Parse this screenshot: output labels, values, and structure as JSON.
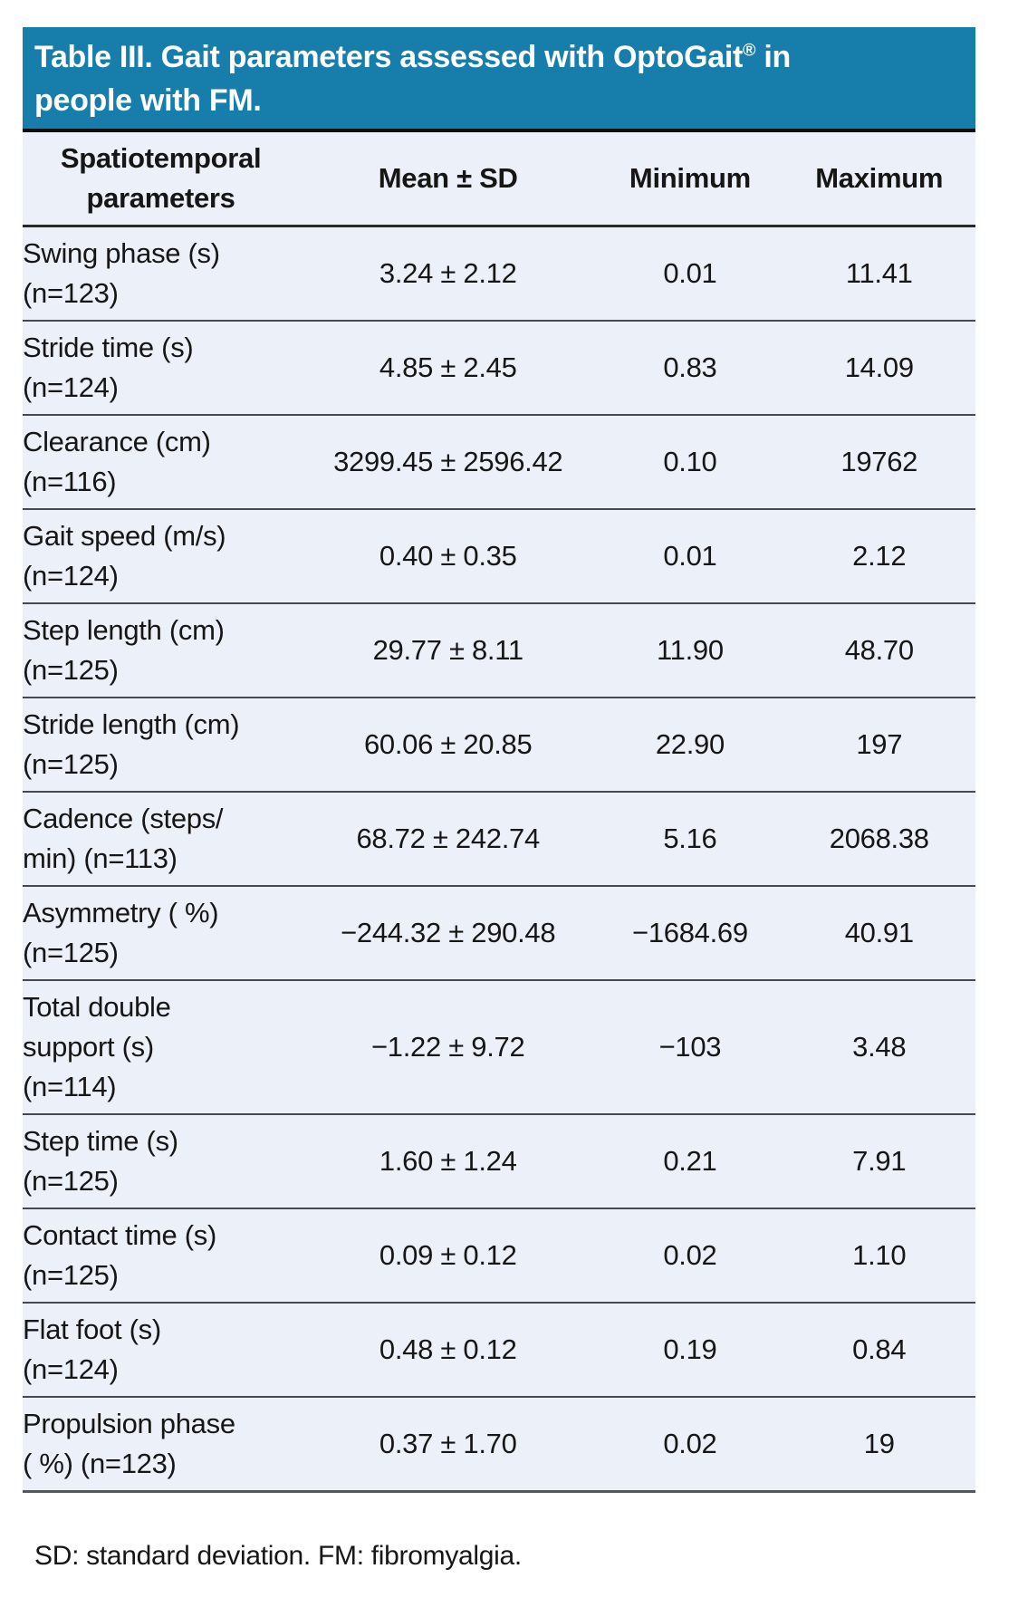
{
  "title": {
    "text_before_sup": "Table III. Gait parameters assessed with OptoGait",
    "sup": "®",
    "text_after_sup": " in\npeople with FM."
  },
  "table": {
    "columns": [
      "Spatiotemporal\nparameters",
      "Mean ± SD",
      "Minimum",
      "Maximum"
    ],
    "rows": [
      {
        "parameter": "Swing phase (s)\n(n=123)",
        "mean_sd": "3.24 ± 2.12",
        "minimum": "0.01",
        "maximum": "11.41"
      },
      {
        "parameter": "Stride time (s)\n(n=124)",
        "mean_sd": "4.85 ± 2.45",
        "minimum": "0.83",
        "maximum": "14.09"
      },
      {
        "parameter": "Clearance (cm)\n(n=116)",
        "mean_sd": "3299.45 ± 2596.42",
        "minimum": "0.10",
        "maximum": "19762"
      },
      {
        "parameter": "Gait speed (m/s)\n(n=124)",
        "mean_sd": "0.40 ± 0.35",
        "minimum": "0.01",
        "maximum": "2.12"
      },
      {
        "parameter": "Step length (cm)\n(n=125)",
        "mean_sd": "29.77 ± 8.11",
        "minimum": "11.90",
        "maximum": "48.70"
      },
      {
        "parameter": "Stride length (cm)\n(n=125)",
        "mean_sd": "60.06 ± 20.85",
        "minimum": "22.90",
        "maximum": "197"
      },
      {
        "parameter": "Cadence (steps/\nmin) (n=113)",
        "mean_sd": "68.72 ± 242.74",
        "minimum": "5.16",
        "maximum": "2068.38"
      },
      {
        "parameter": "Asymmetry ( %)\n(n=125)",
        "mean_sd": "−244.32 ± 290.48",
        "minimum": "−1684.69",
        "maximum": "40.91"
      },
      {
        "parameter": "Total double\nsupport (s)\n(n=114)",
        "mean_sd": "−1.22 ± 9.72",
        "minimum": "−103",
        "maximum": "3.48"
      },
      {
        "parameter": "Step time (s)\n(n=125)",
        "mean_sd": "1.60 ± 1.24",
        "minimum": "0.21",
        "maximum": "7.91"
      },
      {
        "parameter": "Contact time (s)\n(n=125)",
        "mean_sd": "0.09 ± 0.12",
        "minimum": "0.02",
        "maximum": "1.10"
      },
      {
        "parameter": "Flat foot (s)\n(n=124)",
        "mean_sd": "0.48 ± 0.12",
        "minimum": "0.19",
        "maximum": "0.84"
      },
      {
        "parameter": "Propulsion phase\n( %) (n=123)",
        "mean_sd": "0.37 ± 1.70",
        "minimum": "0.02",
        "maximum": "19"
      }
    ]
  },
  "footnote": "SD: standard deviation. FM: fibromyalgia.",
  "colors": {
    "header_blue": "#177EAC",
    "row_background": "#ECF0F8",
    "title_text": "#FFFFFF",
    "body_text": "#161616",
    "rule_dark": "#46494E"
  }
}
